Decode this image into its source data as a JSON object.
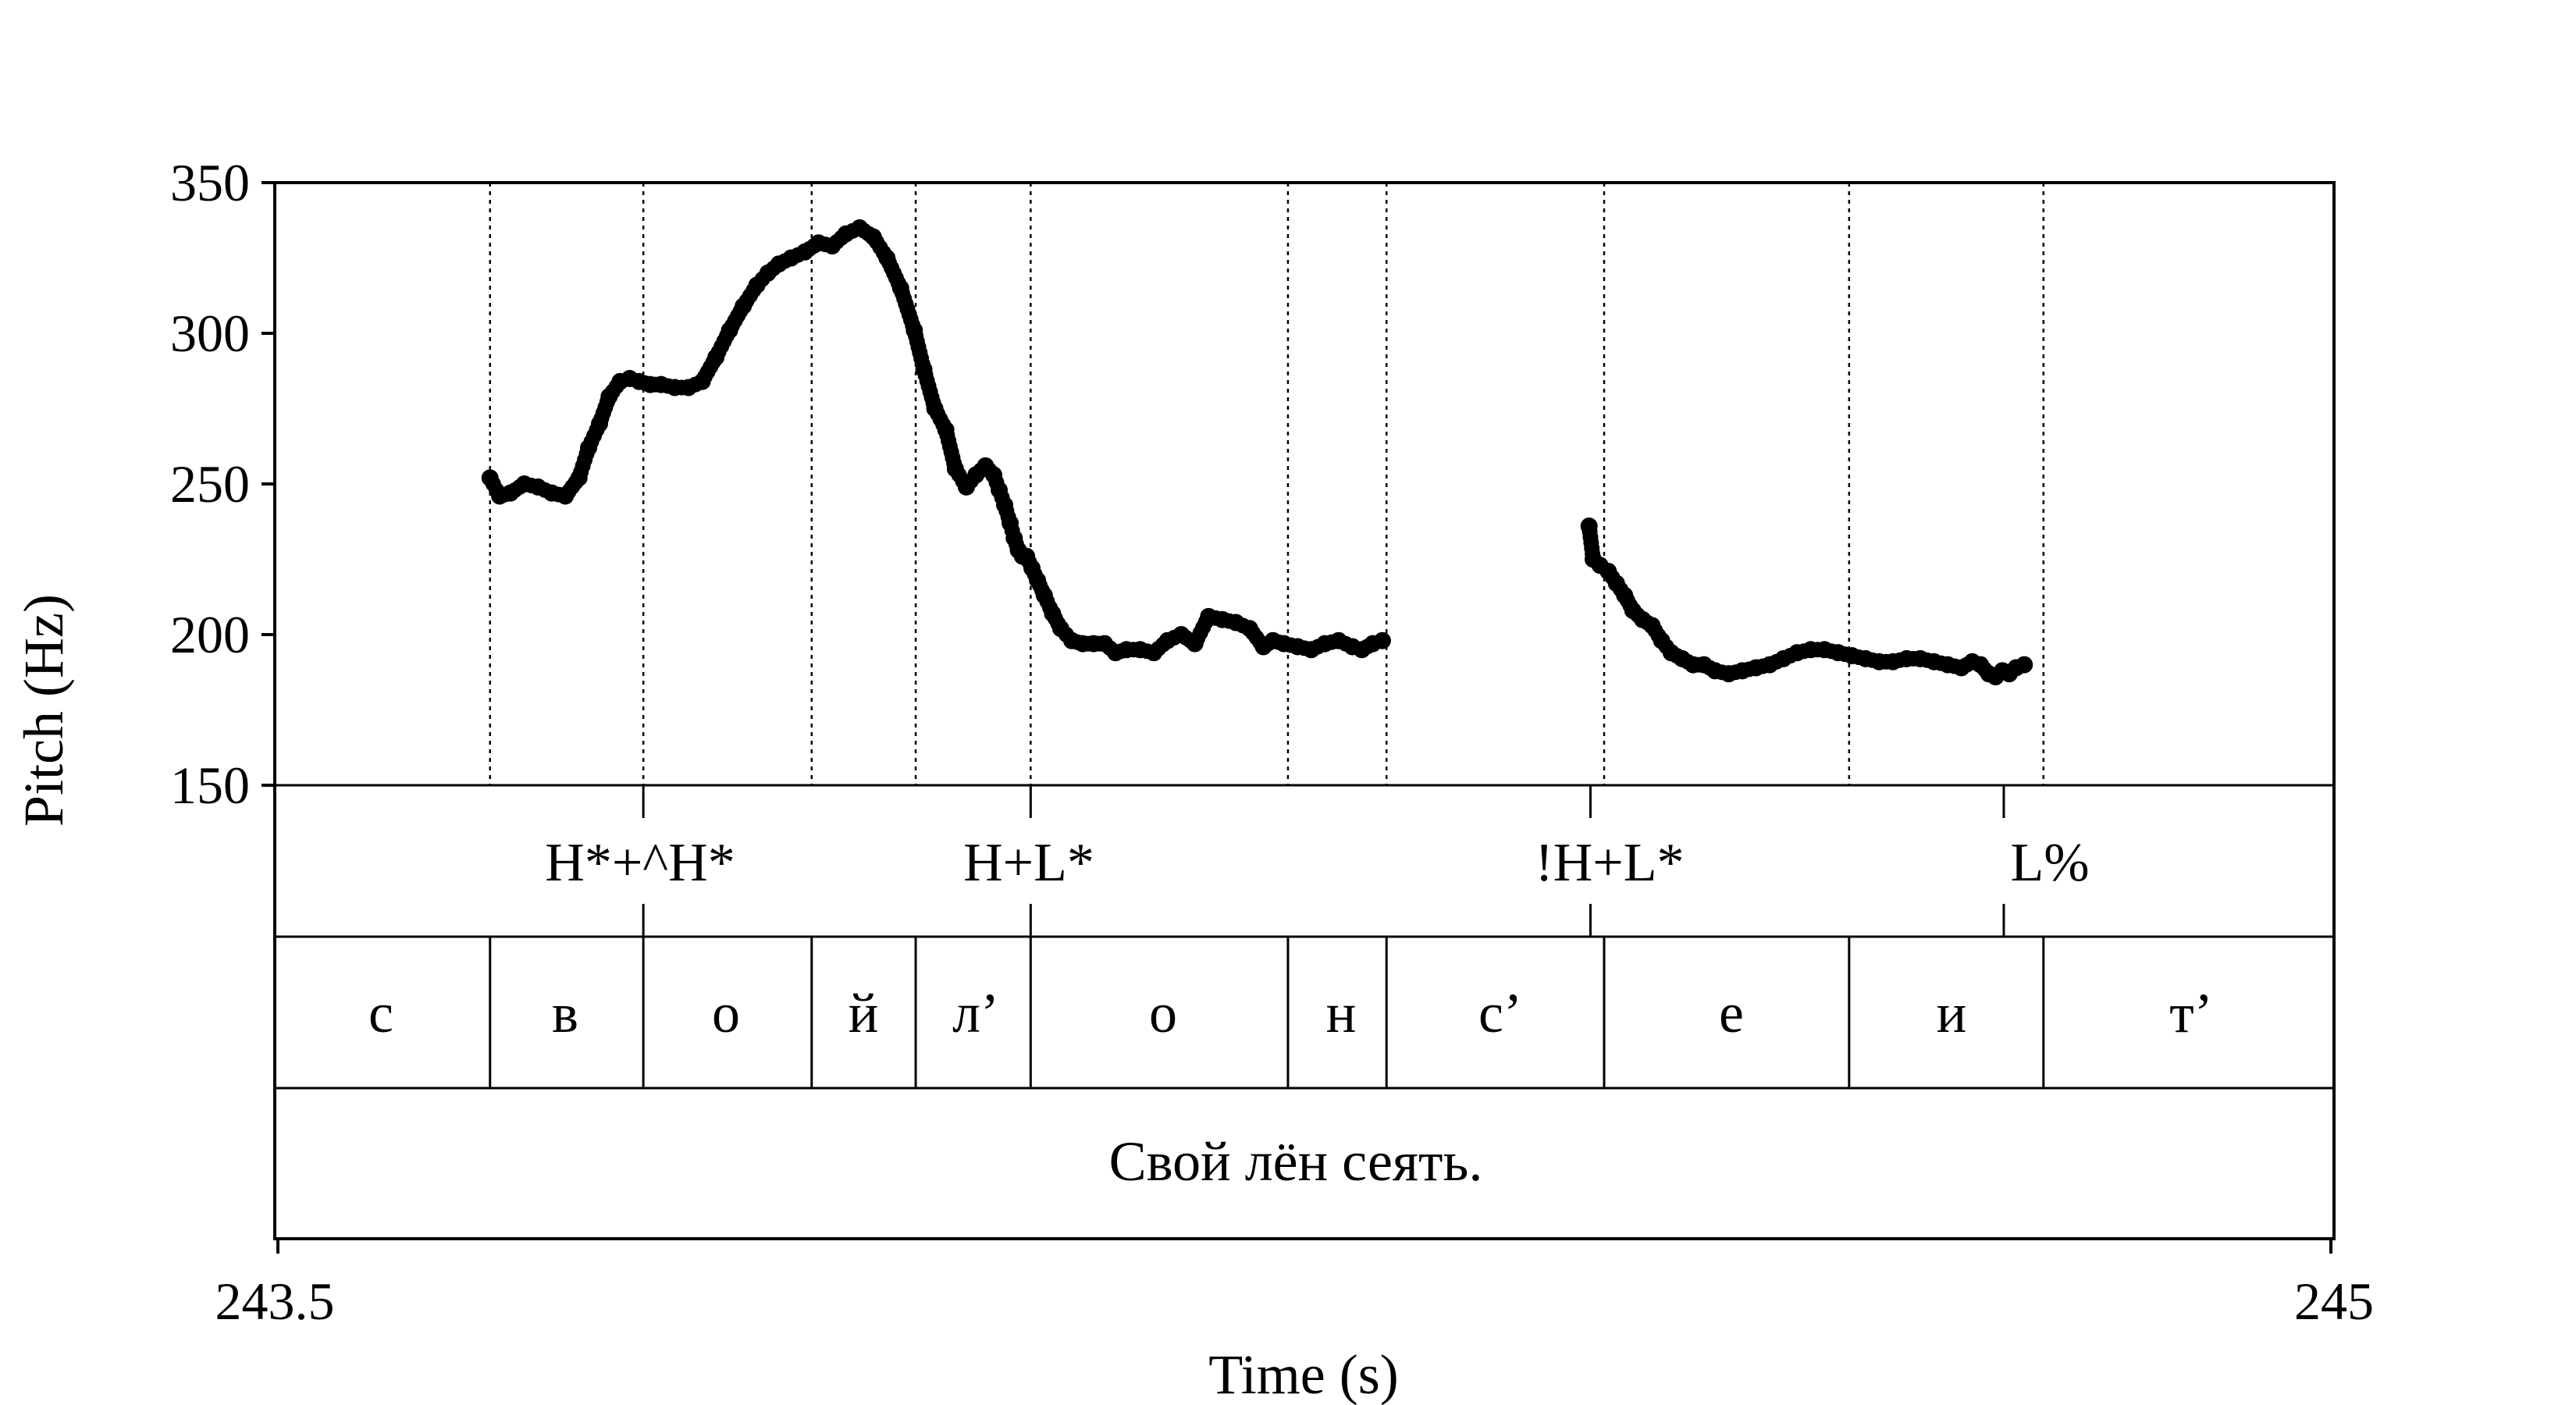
{
  "chart_data": {
    "type": "scatter",
    "ylabel": "Pitch (Hz)",
    "xlabel": "Time (s)",
    "xlim": [
      243.5,
      245
    ],
    "ylim": [
      150,
      350
    ],
    "x_tick_labels": [
      "243.5",
      "245"
    ],
    "y_tick_values": [
      150,
      200,
      250,
      300,
      350
    ],
    "y_tick_labels": [
      "150",
      "200",
      "250",
      "300",
      "350"
    ],
    "tone_tier": [
      {
        "label": "H*+^H*",
        "time": 243.767
      },
      {
        "label": "H+L*",
        "time": 244.05
      },
      {
        "label": "!H+L*",
        "time": 244.459
      },
      {
        "label": "L%",
        "time": 244.761
      }
    ],
    "segment_boundaries": [
      243.655,
      243.767,
      243.89,
      243.966,
      244.05,
      244.238,
      244.31,
      244.469,
      244.648,
      244.79
    ],
    "segments": [
      "с",
      "в",
      "о",
      "й",
      "л’",
      "о",
      "н",
      "с’",
      "е",
      "и",
      "т’"
    ],
    "sentence": "Свой лён сеять.",
    "pitch_series": [
      {
        "x": [
          243.655,
          243.662,
          243.67,
          243.68,
          243.69,
          243.7,
          243.71,
          243.72,
          243.727,
          243.735,
          243.742,
          243.75,
          243.757,
          243.764,
          243.772,
          243.78,
          243.79,
          243.8,
          243.81,
          243.82,
          243.83,
          243.84,
          243.85,
          243.858,
          243.866,
          243.875,
          243.885,
          243.895,
          243.905,
          243.915,
          243.925,
          243.935,
          243.945,
          243.955,
          243.965,
          243.972,
          243.98,
          243.988,
          243.995,
          244.003,
          244.01,
          244.017,
          244.023,
          244.027,
          244.031,
          244.035,
          244.038,
          244.041,
          244.044,
          244.047,
          244.051,
          244.055,
          244.06,
          244.066,
          244.072,
          244.08,
          244.088,
          244.096,
          244.104,
          244.112,
          244.12,
          244.13,
          244.14,
          244.15,
          244.16,
          244.17,
          244.18,
          244.19,
          244.2,
          244.21,
          244.22,
          244.227,
          244.235,
          244.245,
          244.255,
          244.265,
          244.275,
          244.285,
          244.292,
          244.3,
          244.307
        ],
        "y": [
          252,
          246,
          247,
          250,
          249,
          247,
          246,
          252,
          262,
          270,
          279,
          284,
          285,
          284,
          283,
          283,
          282,
          282,
          284,
          292,
          301,
          309,
          316,
          320,
          323,
          325,
          327,
          330,
          329,
          333,
          335,
          332,
          325,
          315,
          301,
          288,
          275,
          268,
          255,
          249,
          253,
          256,
          253,
          248,
          243,
          237,
          232,
          228,
          226,
          226,
          222,
          218,
          213,
          207,
          202,
          198,
          197,
          197,
          197,
          194,
          195,
          195,
          194,
          198,
          200,
          197,
          206,
          205,
          204,
          202,
          196,
          198,
          197,
          196,
          195,
          197,
          198,
          196,
          195,
          197,
          198
        ]
      },
      {
        "x": [
          244.458,
          244.461,
          244.466,
          244.472,
          244.478,
          244.484,
          244.49,
          244.497,
          244.504,
          244.511,
          244.518,
          244.526,
          244.534,
          244.542,
          244.55,
          244.56,
          244.57,
          244.58,
          244.59,
          244.6,
          244.61,
          244.62,
          244.63,
          244.64,
          244.65,
          244.66,
          244.67,
          244.68,
          244.69,
          244.7,
          244.71,
          244.72,
          244.73,
          244.738,
          244.744,
          244.75,
          244.755,
          244.76,
          244.765,
          244.77,
          244.776
        ],
        "y": [
          236,
          225,
          223,
          221,
          217,
          213,
          208,
          205,
          203,
          198,
          194,
          192,
          190,
          190,
          188,
          187,
          188,
          189,
          190,
          192,
          194,
          195,
          195,
          194,
          193,
          192,
          191,
          191,
          192,
          192,
          191,
          190,
          189,
          191,
          190,
          187,
          186,
          188,
          187,
          189,
          190
        ]
      }
    ]
  }
}
